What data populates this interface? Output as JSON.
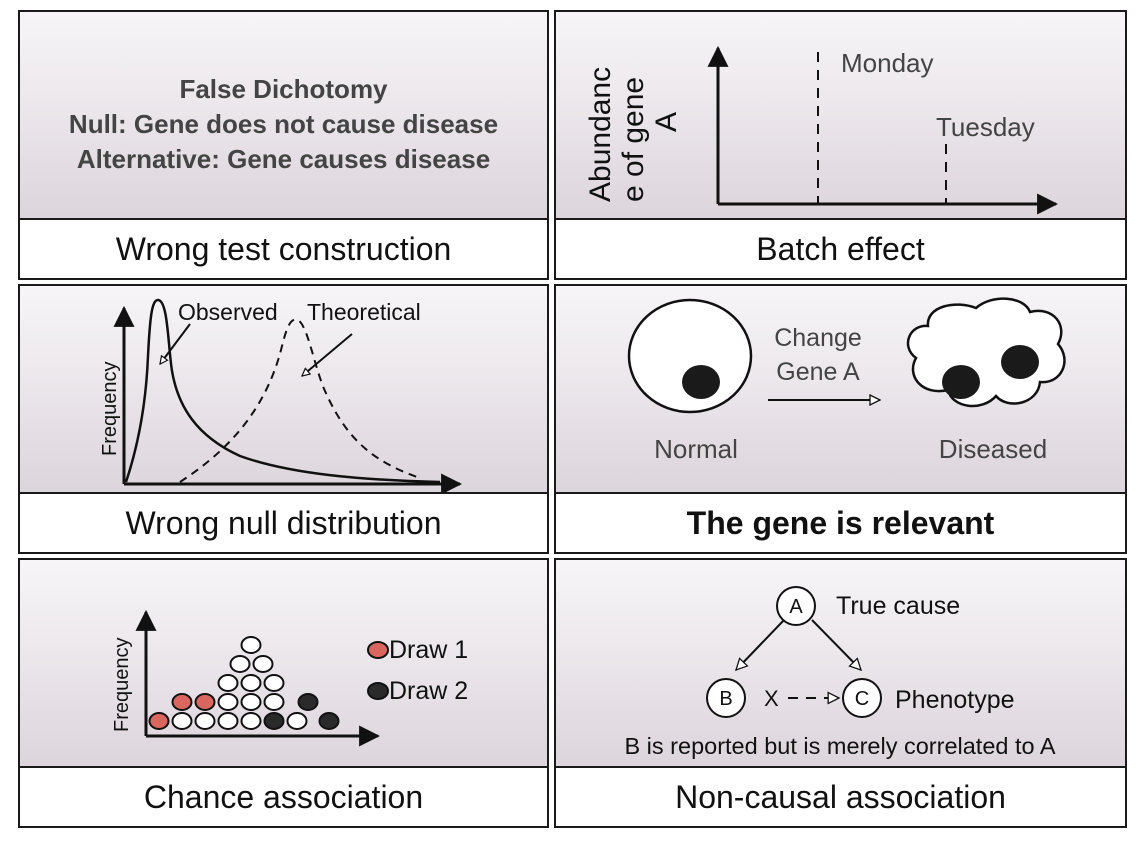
{
  "panels": {
    "p1": {
      "caption": "Wrong test construction",
      "lines": [
        "False Dichotomy",
        "Null: Gene does not cause disease",
        "Alternative: Gene causes disease"
      ]
    },
    "p2": {
      "caption": "Batch effect",
      "ylabel_lines": [
        "Abundanc",
        "e of gene",
        "A"
      ],
      "batch_labels": [
        "Monday",
        "Tuesday"
      ]
    },
    "p3": {
      "caption": "Wrong null distribution",
      "ylabel": "Frequency",
      "curve_labels": [
        "Observed",
        "Theoretical"
      ]
    },
    "p4": {
      "caption": "The gene is relevant",
      "arrow_label_lines": [
        "Change",
        "Gene A"
      ],
      "cell_labels": [
        "Normal",
        "Diseased"
      ]
    },
    "p5": {
      "caption": "Chance association",
      "ylabel": "Frequency",
      "legend": [
        {
          "label": "Draw 1",
          "color": "#d9675f"
        },
        {
          "label": "Draw 2",
          "color": "#2a2a2a"
        }
      ]
    },
    "p6": {
      "caption": "Non-causal association",
      "nodes": [
        "A",
        "B",
        "C"
      ],
      "node_labels": {
        "A": "True cause",
        "C": "Phenotype"
      },
      "blocked_mark": "X",
      "note": "B is reported but is merely correlated to A"
    }
  },
  "colors": {
    "draw1": "#d9675f",
    "draw2": "#2a2a2a",
    "outline": "#1a1a1a"
  }
}
